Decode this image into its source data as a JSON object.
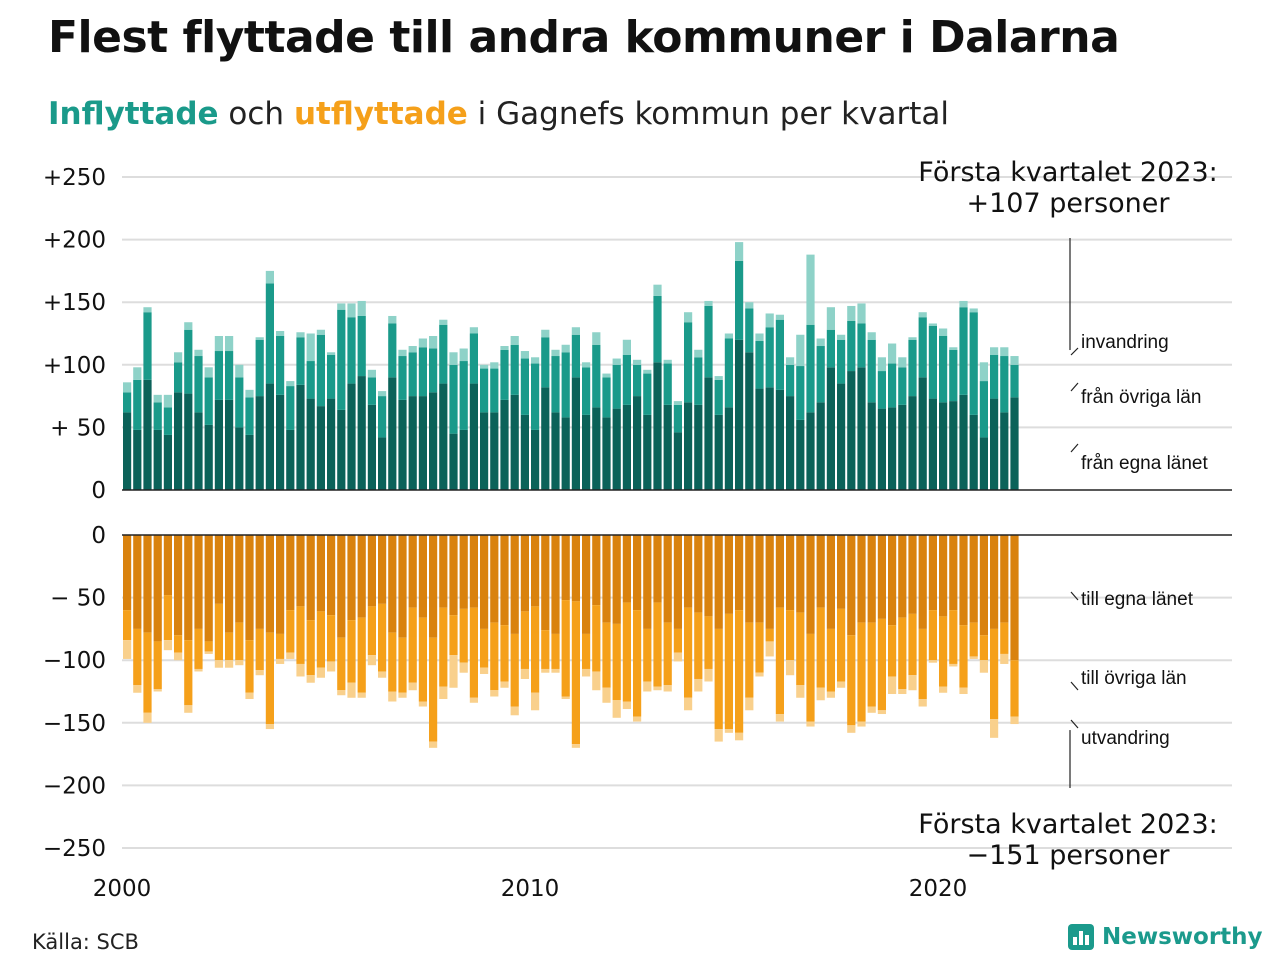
{
  "title": "Flest flyttade till andra kommuner i Dalarna",
  "subtitle": {
    "in_word": "Inflyttade",
    "mid": " och ",
    "out_word": "utflyttade",
    "rest": " i Gagnefs kommun per kvartal"
  },
  "source": "Källa: SCB",
  "brand": "Newsworthy",
  "colors": {
    "in_own": "#0b6259",
    "in_other": "#1a9a8a",
    "in_immig": "#8ed2c8",
    "out_own": "#d9820e",
    "out_other": "#f5a01a",
    "out_emig": "#f9d08c",
    "grid": "#dddddd",
    "axis": "#222222"
  },
  "chart_data": {
    "type": "bar",
    "stacked": true,
    "x_tick_labels": [
      "2000",
      "2010",
      "2020"
    ],
    "x_start": 2000,
    "x_end": 2023.25,
    "y_tick_labels_top": [
      "+250",
      "+200",
      "+150",
      "+100",
      "+ 50",
      "0"
    ],
    "y_tick_labels_bottom": [
      "0",
      "− 50",
      "−100",
      "−150",
      "−200",
      "−250"
    ],
    "ylim_top": [
      0,
      250
    ],
    "ylim_bottom": [
      -250,
      0
    ],
    "grid": true,
    "annotation_top": {
      "line1": "Första kvartalet 2023:",
      "line2": "+107 personer"
    },
    "annotation_bottom": {
      "line1": "Första kvartalet 2023:",
      "line2": "−151 personer"
    },
    "series_labels_in": [
      "invandring",
      "från övriga län",
      "från egna länet"
    ],
    "series_labels_out": [
      "till egna länet",
      "till övriga län",
      "utvandring"
    ],
    "inflow": {
      "own_county": [
        62,
        48,
        88,
        48,
        44,
        78,
        77,
        62,
        52,
        72,
        72,
        50,
        44,
        75,
        85,
        76,
        48,
        84,
        73,
        67,
        73,
        64,
        85,
        91,
        68,
        42,
        90,
        72,
        75,
        75,
        78,
        85,
        45,
        48,
        85,
        62,
        62,
        72,
        76,
        60,
        48,
        82,
        62,
        58,
        90,
        60,
        66,
        58,
        65,
        68,
        75,
        60,
        102,
        68,
        46,
        70,
        68,
        90,
        60,
        66,
        120,
        110,
        81,
        82,
        80,
        75,
        56,
        62,
        70,
        98,
        85,
        95,
        98,
        70,
        65,
        66,
        68,
        75,
        90,
        73,
        70,
        71,
        76,
        60,
        42,
        73,
        62,
        74
      ],
      "other_counties": [
        16,
        40,
        54,
        22,
        22,
        24,
        51,
        45,
        38,
        39,
        39,
        40,
        30,
        45,
        80,
        47,
        35,
        38,
        30,
        57,
        35,
        80,
        53,
        48,
        22,
        33,
        43,
        35,
        35,
        39,
        35,
        47,
        55,
        55,
        40,
        35,
        35,
        40,
        40,
        45,
        53,
        40,
        45,
        52,
        34,
        38,
        50,
        32,
        35,
        40,
        25,
        33,
        53,
        33,
        22,
        64,
        38,
        57,
        28,
        55,
        63,
        35,
        38,
        48,
        56,
        25,
        43,
        70,
        45,
        30,
        35,
        40,
        35,
        50,
        30,
        35,
        30,
        45,
        48,
        58,
        53,
        41,
        70,
        82,
        45,
        35,
        45,
        26
      ],
      "immigration": [
        8,
        10,
        4,
        6,
        10,
        8,
        6,
        5,
        8,
        12,
        12,
        10,
        6,
        2,
        10,
        4,
        4,
        4,
        22,
        4,
        2,
        5,
        11,
        12,
        6,
        4,
        6,
        5,
        5,
        7,
        10,
        4,
        10,
        10,
        5,
        3,
        5,
        3,
        7,
        6,
        5,
        6,
        5,
        6,
        6,
        4,
        10,
        3,
        5,
        12,
        4,
        3,
        9,
        3,
        3,
        8,
        6,
        4,
        3,
        4,
        15,
        5,
        6,
        11,
        4,
        6,
        25,
        56,
        6,
        18,
        4,
        12,
        16,
        6,
        11,
        16,
        8,
        2,
        4,
        2,
        6,
        2,
        5,
        3,
        15,
        6,
        7,
        7
      ]
    },
    "outflow": {
      "own_county": [
        -60,
        -75,
        -78,
        -85,
        -48,
        -80,
        -84,
        -75,
        -85,
        -55,
        -78,
        -70,
        -84,
        -75,
        -78,
        -79,
        -60,
        -57,
        -68,
        -61,
        -64,
        -82,
        -68,
        -66,
        -57,
        -55,
        -78,
        -82,
        -58,
        -66,
        -82,
        -58,
        -64,
        -59,
        -58,
        -75,
        -70,
        -72,
        -79,
        -61,
        -57,
        -76,
        -79,
        -52,
        -53,
        -79,
        -56,
        -70,
        -71,
        -54,
        -60,
        -75,
        -54,
        -70,
        -75,
        -58,
        -62,
        -65,
        -75,
        -63,
        -60,
        -70,
        -70,
        -75,
        -58,
        -60,
        -62,
        -79,
        -58,
        -75,
        -59,
        -80,
        -70,
        -70,
        -67,
        -72,
        -66,
        -63,
        -75,
        -60,
        -65,
        -60,
        -72,
        -70,
        -80,
        -75,
        -70,
        -100
      ],
      "other_counties": [
        -24,
        -45,
        -64,
        -38,
        -36,
        -14,
        -52,
        -32,
        -8,
        -45,
        -22,
        -30,
        -42,
        -33,
        -73,
        -20,
        -34,
        -46,
        -44,
        -45,
        -37,
        -42,
        -50,
        -60,
        -39,
        -54,
        -47,
        -44,
        -60,
        -67,
        -83,
        -63,
        -32,
        -43,
        -72,
        -31,
        -54,
        -45,
        -58,
        -46,
        -69,
        -31,
        -28,
        -77,
        -114,
        -28,
        -53,
        -52,
        -61,
        -79,
        -85,
        -42,
        -67,
        -50,
        -19,
        -72,
        -53,
        -42,
        -80,
        -92,
        -98,
        -60,
        -40,
        -10,
        -85,
        -40,
        -58,
        -70,
        -64,
        -50,
        -58,
        -72,
        -79,
        -67,
        -73,
        -41,
        -57,
        -49,
        -56,
        -40,
        -56,
        -43,
        -50,
        -27,
        -20,
        -72,
        -25,
        -45
      ],
      "emigration": [
        -15,
        -6,
        -8,
        -2,
        -8,
        -6,
        -6,
        -2,
        -2,
        -6,
        -6,
        -4,
        -5,
        -4,
        -4,
        -4,
        -5,
        -10,
        -6,
        -8,
        -8,
        -4,
        -12,
        -4,
        -8,
        -5,
        -8,
        -4,
        -6,
        -4,
        -5,
        -10,
        -26,
        -8,
        -4,
        -5,
        -5,
        -5,
        -7,
        -8,
        -14,
        -3,
        -3,
        -2,
        -3,
        -6,
        -15,
        -12,
        -14,
        -6,
        -4,
        -8,
        -3,
        -5,
        -7,
        -10,
        -10,
        -10,
        -10,
        -3,
        -6,
        -10,
        -3,
        -12,
        -6,
        -12,
        -10,
        -4,
        -10,
        -5,
        -5,
        -6,
        -4,
        -5,
        -3,
        -14,
        -4,
        -12,
        -6,
        -2,
        -5,
        -2,
        -5,
        -2,
        -10,
        -15,
        -8,
        -6
      ]
    }
  }
}
